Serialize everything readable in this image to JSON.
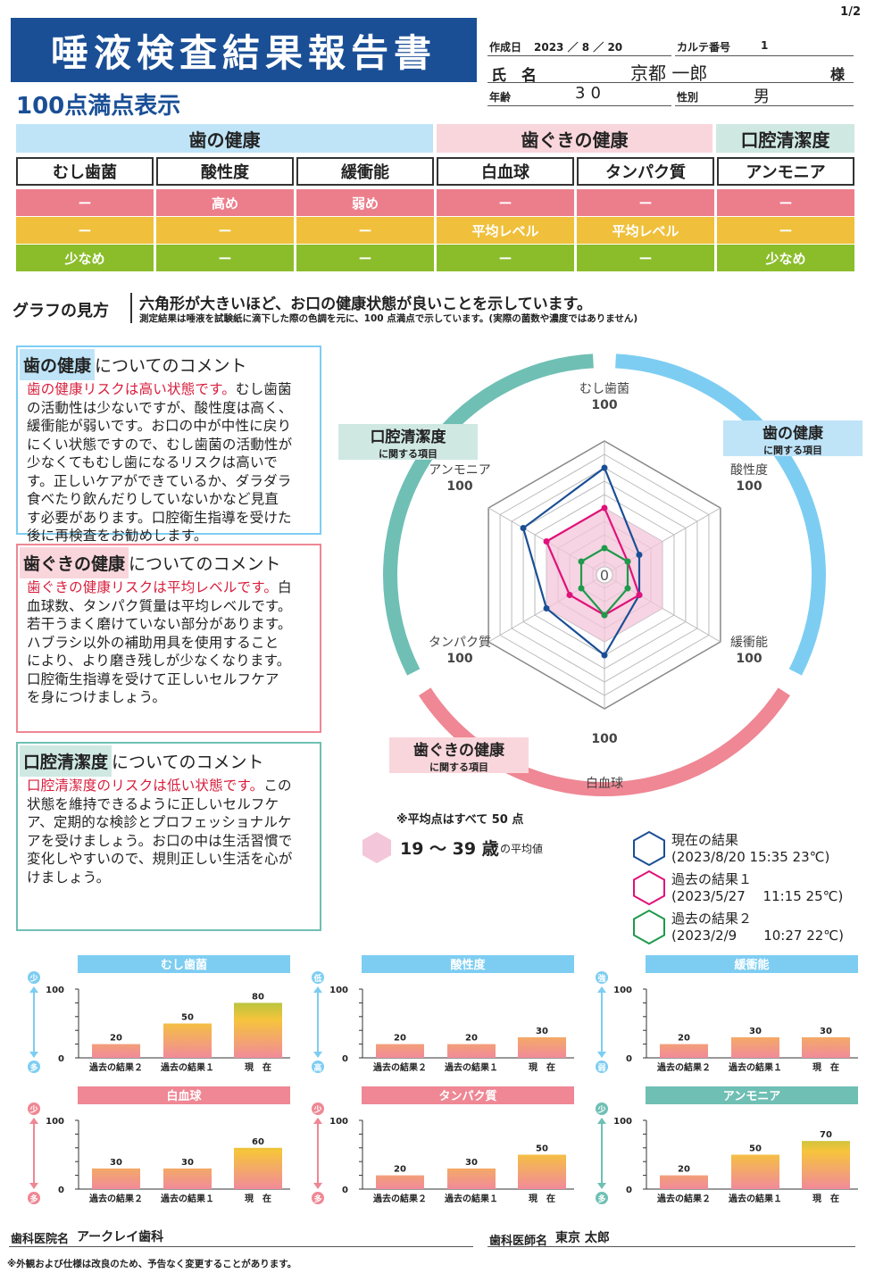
{
  "page_num": "1/2",
  "title": "唾液検査結果報告書",
  "subtitle": "100点満点表示",
  "info": {
    "date_label": "作成日",
    "date_value": "2023 ／ 8 ／ 20",
    "karte_label": "カルテ番号",
    "karte_value": "1",
    "name_label": "氏　名",
    "name_value": "京都 一郎",
    "honorific": "様",
    "age_label": "年齢",
    "age_value": "30",
    "sex_label": "性別",
    "sex_value": "男"
  },
  "categories": {
    "teeth": "歯の健康",
    "gums": "歯ぐきの健康",
    "oral": "口腔清潔度"
  },
  "columns": [
    "むし歯菌",
    "酸性度",
    "緩衝能",
    "白血球",
    "タンパク質",
    "アンモニア"
  ],
  "rows": [
    [
      "ー",
      "高め",
      "弱め",
      "ー",
      "ー",
      "ー"
    ],
    [
      "ー",
      "ー",
      "ー",
      "平均レベル",
      "平均レベル",
      "ー"
    ],
    [
      "少なめ",
      "ー",
      "ー",
      "ー",
      "ー",
      "少なめ"
    ]
  ],
  "guide": {
    "label": "グラフの見方",
    "main": "六角形が大きいほど、お口の健康状態が良いことを示しています。",
    "note": "測定結果は唾液を試験紙に滴下した際の色調を元に、100 点満点で示しています。(実際の菌数や濃度ではありません)"
  },
  "comments": {
    "teeth": {
      "tag": "歯の健康",
      "suffix": "についてのコメント",
      "lines": [
        {
          "red": "歯の健康リスクは高い状態です。",
          "text": "むし歯菌"
        },
        {
          "red": "",
          "text": "の活動性は少ないですが、酸性度は高く、"
        },
        {
          "red": "",
          "text": "緩衝能が弱いです。お口の中が中性に戻り"
        },
        {
          "red": "",
          "text": "にくい状態ですので、むし歯菌の活動性が"
        },
        {
          "red": "",
          "text": "少なくてもむし歯になるリスクは高いで"
        },
        {
          "red": "",
          "text": "す。正しいケアができているか、ダラダラ"
        },
        {
          "red": "",
          "text": "食べたり飲んだりしていないかなど見直"
        },
        {
          "red": "",
          "text": "す必要があります。口腔衛生指導を受けた"
        },
        {
          "red": "",
          "text": "後に再検査をお勧めします。"
        }
      ]
    },
    "gums": {
      "tag": "歯ぐきの健康",
      "suffix": "についてのコメント",
      "lines": [
        {
          "red": "歯ぐきの健康リスクは平均レベルです。",
          "text": "白"
        },
        {
          "red": "",
          "text": "血球数、タンパク質量は平均レベルです。"
        },
        {
          "red": "",
          "text": "若干うまく磨けていない部分があります。"
        },
        {
          "red": "",
          "text": "ハブラシ以外の補助用具を使用すること"
        },
        {
          "red": "",
          "text": "により、より磨き残しが少なくなります。"
        },
        {
          "red": "",
          "text": "口腔衛生指導を受けて正しいセルフケア"
        },
        {
          "red": "",
          "text": "を身につけましょう。"
        }
      ]
    },
    "oral": {
      "tag": "口腔清潔度",
      "suffix": "についてのコメント",
      "lines": [
        {
          "red": "口腔清潔度のリスクは低い状態です。",
          "text": "この"
        },
        {
          "red": "",
          "text": "状態を維持できるように正しいセルフケ"
        },
        {
          "red": "",
          "text": "ア、定期的な検診とプロフェッショナルケ"
        },
        {
          "red": "",
          "text": "アを受けましょう。お口の中は生活習慣で"
        },
        {
          "red": "",
          "text": "変化しやすいので、規則正しい生活を心が"
        },
        {
          "red": "",
          "text": "けましょう。"
        }
      ]
    }
  },
  "radar": {
    "center_label": "0",
    "max_label": "100",
    "axes": [
      "むし歯菌",
      "酸性度",
      "緩衝能",
      "白血球",
      "タンパク質",
      "アンモニア"
    ],
    "tags": {
      "teeth": {
        "title": "歯の健康",
        "sub": "に関する項目"
      },
      "gums": {
        "title": "歯ぐきの健康",
        "sub": "に関する項目"
      },
      "oral": {
        "title": "口腔清潔度",
        "sub": "に関する項目"
      }
    }
  },
  "chart_data": [
    {
      "type": "radar",
      "categories": [
        "むし歯菌",
        "酸性度",
        "緩衝能",
        "白血球",
        "タンパク質",
        "アンモニア"
      ],
      "range": [
        0,
        100
      ],
      "series": [
        {
          "name": "19 〜 39 歳の平均値",
          "values": [
            50,
            50,
            50,
            50,
            50,
            50
          ],
          "color": "#f3c6da"
        },
        {
          "name": "現在の結果",
          "values": [
            80,
            30,
            30,
            60,
            50,
            70
          ],
          "color": "#1a4f96"
        },
        {
          "name": "過去の結果１",
          "values": [
            50,
            20,
            30,
            30,
            30,
            50
          ],
          "color": "#e0117a"
        },
        {
          "name": "過去の結果２",
          "values": [
            20,
            20,
            20,
            30,
            20,
            20
          ],
          "color": "#1e9a4a"
        }
      ]
    },
    {
      "type": "bar",
      "title": "むし歯菌",
      "categories": [
        "過去の結果２",
        "過去の結果１",
        "現　在"
      ],
      "values": [
        20,
        50,
        80
      ],
      "ylim": [
        0,
        100
      ],
      "top_label": "少",
      "bottom_label": "多",
      "color": "#7dcdf2"
    },
    {
      "type": "bar",
      "title": "酸性度",
      "categories": [
        "過去の結果２",
        "過去の結果１",
        "現　在"
      ],
      "values": [
        20,
        20,
        30
      ],
      "ylim": [
        0,
        100
      ],
      "top_label": "低",
      "bottom_label": "高",
      "color": "#7dcdf2"
    },
    {
      "type": "bar",
      "title": "緩衝能",
      "categories": [
        "過去の結果２",
        "過去の結果１",
        "現　在"
      ],
      "values": [
        20,
        30,
        30
      ],
      "ylim": [
        0,
        100
      ],
      "top_label": "強",
      "bottom_label": "弱",
      "color": "#7dcdf2"
    },
    {
      "type": "bar",
      "title": "白血球",
      "categories": [
        "過去の結果２",
        "過去の結果１",
        "現　在"
      ],
      "values": [
        30,
        30,
        60
      ],
      "ylim": [
        0,
        100
      ],
      "top_label": "少",
      "bottom_label": "多",
      "color": "#ef8794"
    },
    {
      "type": "bar",
      "title": "タンパク質",
      "categories": [
        "過去の結果２",
        "過去の結果１",
        "現　在"
      ],
      "values": [
        20,
        30,
        50
      ],
      "ylim": [
        0,
        100
      ],
      "top_label": "少",
      "bottom_label": "多",
      "color": "#ef8794"
    },
    {
      "type": "bar",
      "title": "アンモニア",
      "categories": [
        "過去の結果２",
        "過去の結果１",
        "現　在"
      ],
      "values": [
        20,
        50,
        70
      ],
      "ylim": [
        0,
        100
      ],
      "top_label": "少",
      "bottom_label": "多",
      "color": "#6fbfb4"
    }
  ],
  "legend": {
    "avg_note": "※平均点はすべて 50 点",
    "avg_age": "19 〜 39 歳",
    "avg_suffix": "の平均値",
    "current_name": "現在の結果",
    "current_date": "(2023/8/20 15:35 23℃)",
    "past1_name": "過去の結果１",
    "past1_date": "(2023/5/27　 11:15 25℃)",
    "past2_name": "過去の結果２",
    "past2_date": "(2023/2/9　　10:27 22℃)"
  },
  "footer": {
    "clinic_label": "歯科医院名",
    "clinic_value": "アークレイ歯科",
    "doctor_label": "歯科医師名",
    "doctor_value": "東京 太郎",
    "disclaimer": "※外観および仕様は改良のため、予告なく変更することがあります。"
  },
  "colors": {
    "navy": "#1a4f96",
    "light_blue": "#7dcdf2",
    "pink": "#ef8794",
    "teal": "#6fbfb4",
    "red_text": "#d81e3c"
  }
}
